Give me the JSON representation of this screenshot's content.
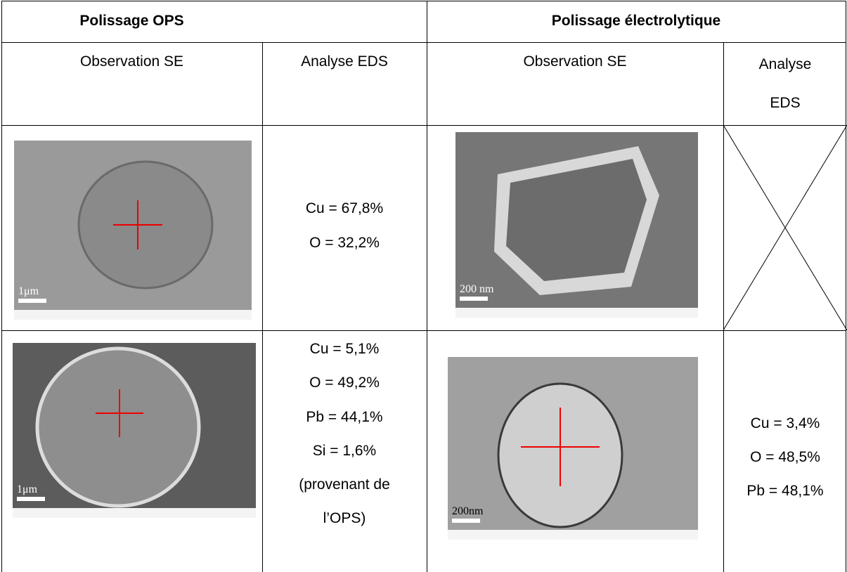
{
  "header": [
    "Polissage OPS",
    "Polissage électrolytique"
  ],
  "subheader": [
    [
      "Observation SE"
    ],
    [
      "Analyse EDS"
    ],
    [
      "Observation SE"
    ],
    [
      "Analyse",
      "EDS"
    ]
  ],
  "rows": [
    {
      "image1_scale": "1μm",
      "eds1": [
        "Cu = 67,8%",
        "O = 32,2%"
      ],
      "image2_scale": "200 nm"
    },
    {
      "image1_scale": "1μm",
      "eds1": [
        "Cu = 5,1%",
        "O = 49,2%",
        "Pb = 44,1%",
        "Si = 1,6%",
        "(provenant de",
        "l’OPS)"
      ],
      "image2_scale": "200nm",
      "eds2": [
        "Cu = 3,4%",
        "O = 48,5%",
        "Pb = 48,1%"
      ]
    }
  ]
}
